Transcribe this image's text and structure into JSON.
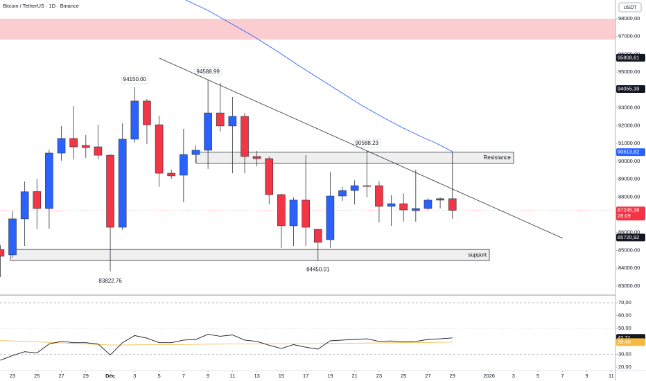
{
  "header": {
    "title": "Bitcoin / TetherUS · 1D · Binance",
    "currency": "USDT"
  },
  "chart_data": [
    {
      "type": "candlestick",
      "categories": [
        null,
        "23",
        null,
        "25",
        null,
        "27",
        null,
        "29",
        null,
        "Déc",
        null,
        "3",
        null,
        "5",
        null,
        "7",
        null,
        "9",
        null,
        "11",
        null,
        "13",
        null,
        "15",
        null,
        "17",
        null,
        "19",
        null,
        "21",
        null,
        "23",
        null,
        "25",
        null,
        "27",
        null,
        "29",
        null,
        null,
        "2026",
        null,
        "3",
        null,
        "5",
        null,
        "7",
        null,
        "9",
        null,
        "11"
      ],
      "open": [
        85050,
        84750,
        86770,
        88300,
        87350,
        90460,
        91280,
        90890,
        90810,
        90340,
        86300,
        91240,
        93380,
        92050,
        89330,
        89220,
        90380,
        90620,
        92710,
        91980,
        92520,
        90270,
        90150,
        88130,
        86380,
        87820,
        86180,
        85600,
        88050,
        88360,
        88630,
        88630,
        87470,
        87620,
        87230,
        87350,
        87820,
        87900,
        null,
        null,
        null,
        null,
        null,
        null,
        null,
        null,
        null,
        null,
        null,
        null,
        null
      ],
      "high": [
        85300,
        87200,
        88870,
        89020,
        90650,
        91980,
        93100,
        91470,
        92050,
        90400,
        92130,
        94150,
        93490,
        92560,
        89530,
        91820,
        90890,
        94588.99,
        94390,
        93610,
        92710,
        90580,
        90270,
        88180,
        87970,
        90340,
        86200,
        89410,
        88560,
        88930,
        90588.23,
        88870,
        88100,
        88200,
        89530,
        87930,
        87970,
        90500,
        null,
        null,
        null,
        null,
        null,
        null,
        null,
        null,
        null,
        null,
        null,
        null,
        null
      ],
      "low": [
        83500,
        84600,
        85250,
        86190,
        86220,
        90030,
        90110,
        90190,
        90110,
        83822.76,
        86150,
        91040,
        90970,
        88560,
        89020,
        87700,
        89920,
        89570,
        91670,
        89330,
        89330,
        89720,
        87580,
        85140,
        85250,
        85250,
        84450.01,
        85140,
        87780,
        87580,
        87970,
        86570,
        86380,
        86610,
        86610,
        87270,
        87350,
        86770,
        null,
        null,
        null,
        null,
        null,
        null,
        null,
        null,
        null,
        null,
        null,
        null,
        null
      ],
      "close": [
        84670,
        86770,
        88290,
        87350,
        90460,
        91280,
        90810,
        90770,
        90340,
        86300,
        91240,
        93380,
        92050,
        89330,
        89180,
        90380,
        90620,
        92710,
        91980,
        92520,
        90270,
        90150,
        88130,
        86380,
        87820,
        86300,
        85450,
        88050,
        88360,
        88630,
        88600,
        87470,
        87620,
        87270,
        87350,
        87820,
        87900,
        87245.38,
        null,
        null,
        null,
        null,
        null,
        null,
        null,
        null,
        null,
        null,
        null,
        null,
        null
      ],
      "high_labels": [
        null,
        null,
        null,
        null,
        null,
        null,
        null,
        null,
        null,
        null,
        null,
        "94150.00",
        null,
        null,
        null,
        null,
        null,
        "94588.99",
        null,
        null,
        null,
        null,
        null,
        null,
        null,
        null,
        null,
        null,
        null,
        null,
        "90588.23",
        null,
        null,
        null,
        null,
        null,
        null,
        null,
        null,
        null,
        null,
        null,
        null,
        null,
        null,
        null,
        null,
        null,
        null,
        null,
        null
      ],
      "low_labels": [
        null,
        null,
        null,
        null,
        null,
        null,
        null,
        null,
        null,
        "83822.76",
        null,
        null,
        null,
        null,
        null,
        null,
        null,
        null,
        null,
        null,
        null,
        null,
        null,
        null,
        null,
        null,
        "84450.01",
        null,
        null,
        null,
        null,
        null,
        null,
        null,
        null,
        null,
        null,
        null,
        null,
        null,
        null,
        null,
        null,
        null,
        null,
        null,
        null,
        null,
        null,
        null,
        null
      ],
      "up_color": "#2962ff",
      "down_color": "#f23645",
      "ylim": [
        82530,
        99050
      ],
      "yticks": [
        {
          "value": 98000,
          "label": "98000,00"
        },
        {
          "value": 97000,
          "label": "97000,00"
        },
        {
          "value": 96000,
          "label": "96000,00"
        },
        {
          "value": 95000,
          "label": "95000,00"
        },
        {
          "value": 94000,
          "label": "94000,00"
        },
        {
          "value": 93000,
          "label": "93000,00"
        },
        {
          "value": 92000,
          "label": "92000,00"
        },
        {
          "value": 91000,
          "label": "91000,00"
        },
        {
          "value": 90000,
          "label": "90000,00"
        },
        {
          "value": 89000,
          "label": "89000,00"
        },
        {
          "value": 88000,
          "label": "88000,00"
        },
        {
          "value": 87000,
          "label": "87000,00"
        },
        {
          "value": 86000,
          "label": "86000,00"
        },
        {
          "value": 85000,
          "label": "85000,00"
        },
        {
          "value": 84000,
          "label": "84000,00"
        },
        {
          "value": 83000,
          "label": "83000,00"
        }
      ],
      "zones": [
        {
          "range": [
            96830,
            98000
          ],
          "color": "#f23645"
        },
        {
          "label": "Resistance",
          "range": [
            89890,
            90510
          ],
          "color": "#787b86"
        },
        {
          "label": "support",
          "range": [
            84430,
            85050
          ],
          "color": "#787b86"
        }
      ],
      "axis_markers": [
        {
          "value": 95808.61,
          "label": "95808,61",
          "color": "#131722"
        },
        {
          "value": 94055.39,
          "label": "94055,39",
          "color": "#131722"
        },
        {
          "value": 90513.82,
          "label": "90513,82",
          "color": "#2962ff"
        },
        {
          "value": 85720.92,
          "label": "85720,92",
          "color": "#131722"
        }
      ],
      "last_label": "87245,38",
      "countdown": "28:09"
    },
    {
      "type": "line",
      "series": [
        {
          "color": "#131722",
          "values": [
            25.3,
            29,
            32,
            31,
            38,
            40,
            39,
            39,
            38,
            29.5,
            39,
            44.5,
            42.5,
            39,
            39,
            41,
            41.5,
            45.5,
            44,
            45,
            41,
            40,
            37,
            34.5,
            37.5,
            35.5,
            34,
            40.5,
            41,
            41.5,
            42,
            40,
            40.3,
            39.7,
            40,
            41.5,
            42,
            42.71,
            null,
            null,
            null,
            null,
            null,
            null,
            null,
            null,
            null,
            null,
            null,
            null,
            null
          ]
        },
        {
          "color": "#f5b942",
          "values": [
            40.6,
            40.3,
            40,
            39.6,
            39.2,
            38.8,
            38.4,
            38,
            37.6,
            37.2,
            37.2,
            37.3,
            37.4,
            37.5,
            37.6,
            37.6,
            37.7,
            37.8,
            37.9,
            38,
            38,
            38.1,
            38.1,
            38.2,
            38.2,
            38.3,
            38.3,
            38.4,
            38.5,
            38.6,
            38.7,
            38.8,
            38.9,
            39,
            39.1,
            39.2,
            39.3,
            39.4,
            null,
            null,
            null,
            null,
            null,
            null,
            null,
            null,
            null,
            null,
            null,
            null,
            null
          ]
        }
      ],
      "ylim": [
        17.3,
        75.4
      ],
      "yticks": [
        {
          "value": 70,
          "label": "70,00"
        },
        {
          "value": 60,
          "label": "60,00"
        },
        {
          "value": 50,
          "label": "50,00"
        },
        {
          "value": 30,
          "label": "30,00"
        },
        {
          "value": 20,
          "label": "20,00"
        }
      ],
      "levels": [
        70,
        50,
        30
      ],
      "axis_markers": [
        {
          "value": 42.71,
          "label": "42,71",
          "color": "#131722"
        },
        {
          "value": 39.4,
          "label": "39,40",
          "color": "#f5b942"
        }
      ]
    }
  ]
}
